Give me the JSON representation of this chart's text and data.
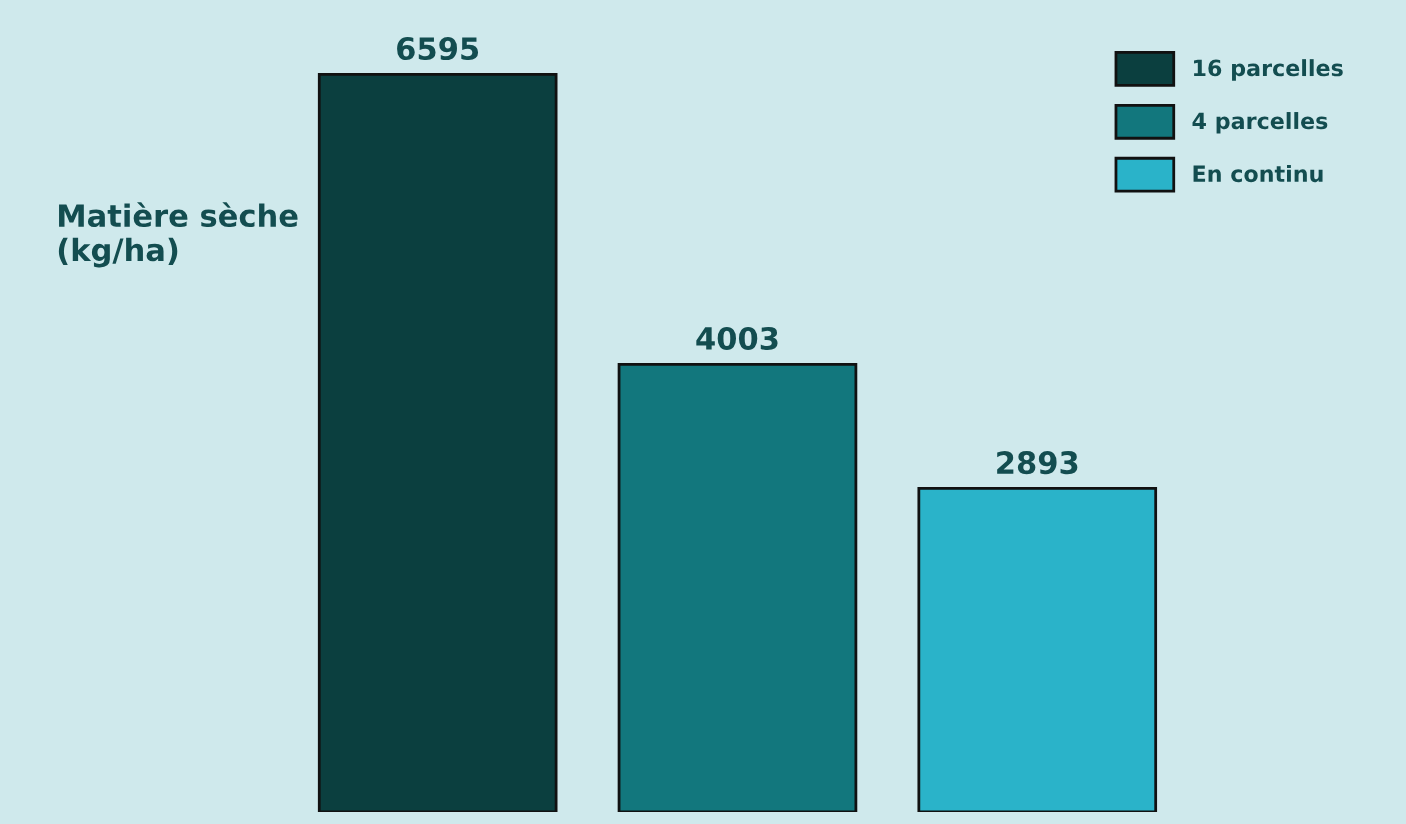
{
  "chart_data": {
    "type": "bar",
    "ylabel": "Matière sèche\n(kg/ha)",
    "categories": [
      null,
      null,
      null
    ],
    "series": [
      {
        "name": "16 parcelles",
        "color": "#0b3f3f",
        "values": [
          6595,
          null,
          null
        ]
      },
      {
        "name": "4 parcelles",
        "color": "#12777d",
        "values": [
          null,
          4003,
          null
        ]
      },
      {
        "name": "En continu",
        "color": "#2ab3c9",
        "values": [
          null,
          null,
          2893
        ]
      }
    ],
    "ylim": [
      0,
      7260
    ],
    "stacked": true,
    "data_labels": true,
    "grid": false,
    "legend": "top right"
  }
}
